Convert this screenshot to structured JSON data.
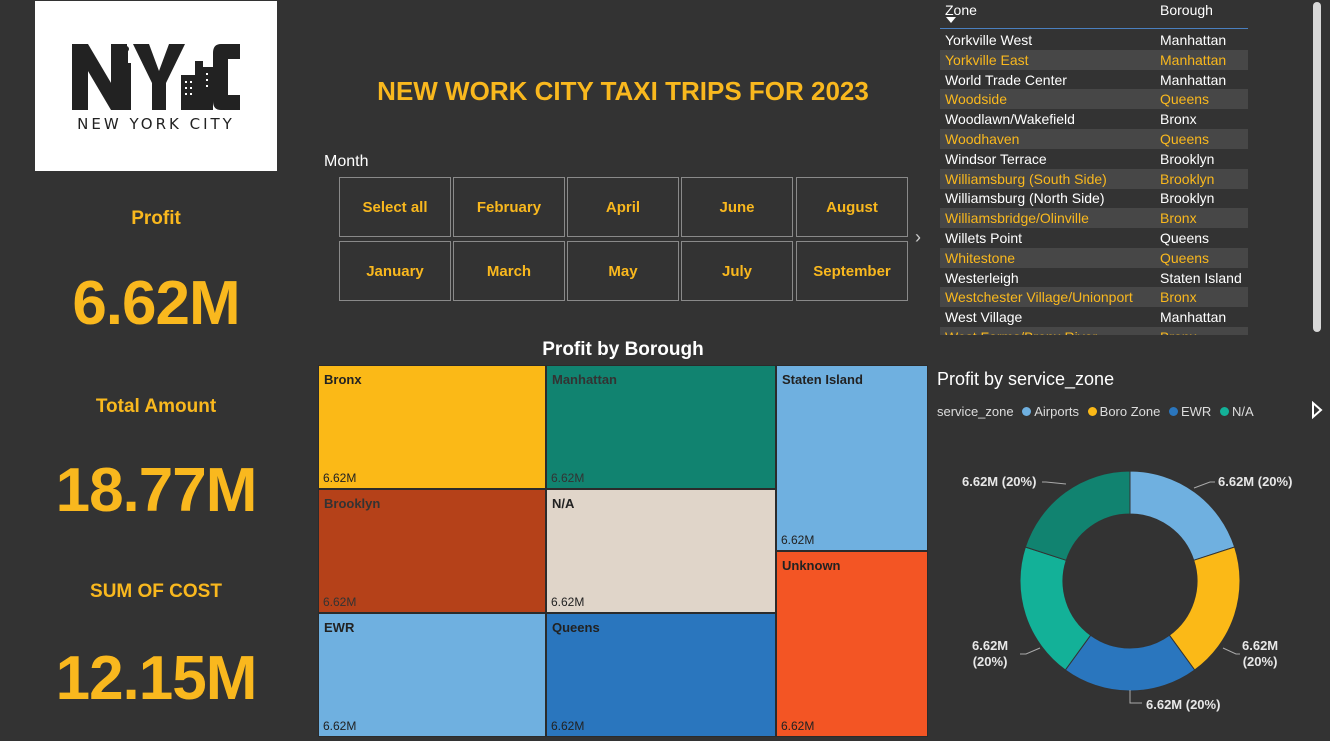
{
  "logo": {
    "big_text": "NYC",
    "subtitle": "NEW YORK CITY"
  },
  "title": "NEW WORK CITY TAXI TRIPS FOR 2023",
  "kpis": [
    {
      "label": "Profit",
      "value": "6.62M"
    },
    {
      "label": "Total Amount",
      "value": "18.77M"
    },
    {
      "label": "SUM OF COST",
      "value": "12.15M"
    }
  ],
  "month_slicer": {
    "title": "Month",
    "row1": [
      "Select all",
      "February",
      "April",
      "June",
      "August"
    ],
    "row2": [
      "January",
      "March",
      "May",
      "July",
      "September"
    ]
  },
  "zone_table": {
    "headers": [
      "Zone",
      "Borough"
    ],
    "rows": [
      [
        "Yorkville West",
        "Manhattan"
      ],
      [
        "Yorkville East",
        "Manhattan"
      ],
      [
        "World Trade Center",
        "Manhattan"
      ],
      [
        "Woodside",
        "Queens"
      ],
      [
        "Woodlawn/Wakefield",
        "Bronx"
      ],
      [
        "Woodhaven",
        "Queens"
      ],
      [
        "Windsor Terrace",
        "Brooklyn"
      ],
      [
        "Williamsburg (South Side)",
        "Brooklyn"
      ],
      [
        "Williamsburg (North Side)",
        "Brooklyn"
      ],
      [
        "Williamsbridge/Olinville",
        "Bronx"
      ],
      [
        "Willets Point",
        "Queens"
      ],
      [
        "Whitestone",
        "Queens"
      ],
      [
        "Westerleigh",
        "Staten Island"
      ],
      [
        "Westchester Village/Unionport",
        "Bronx"
      ],
      [
        "West Village",
        "Manhattan"
      ],
      [
        "West Farms/Bronx River",
        "Bronx"
      ]
    ]
  },
  "treemap": {
    "title": "Profit by Borough",
    "tiles": [
      {
        "name": "Bronx",
        "value": "6.62M",
        "color": "#fbb917",
        "text": "#222222"
      },
      {
        "name": "Manhattan",
        "value": "6.62M",
        "color": "#118370",
        "text": "#333333"
      },
      {
        "name": "Staten Island",
        "value": "6.62M",
        "color": "#6fb0e0",
        "text": "#222222"
      },
      {
        "name": "Brooklyn",
        "value": "6.62M",
        "color": "#b54119",
        "text": "#333333"
      },
      {
        "name": "N/A",
        "value": "6.62M",
        "color": "#e0d5c9",
        "text": "#222222"
      },
      {
        "name": "Unknown",
        "value": "6.62M",
        "color": "#f35524",
        "text": "#222222"
      },
      {
        "name": "EWR",
        "value": "6.62M",
        "color": "#6fb0e0",
        "text": "#222222"
      },
      {
        "name": "Queens",
        "value": "6.62M",
        "color": "#2a76be",
        "text": "#222222"
      }
    ]
  },
  "donut": {
    "title": "Profit by service_zone",
    "legend_title": "service_zone",
    "legend": [
      {
        "name": "Airports",
        "color": "#6fb0e0"
      },
      {
        "name": "Boro Zone",
        "color": "#fbb917"
      },
      {
        "name": "EWR",
        "color": "#2a76be"
      },
      {
        "name": "N/A",
        "color": "#13b198"
      }
    ],
    "label_top_left": "6.62M (20%)",
    "label_top_right": "6.62M (20%)",
    "label_right_line1": "6.62M",
    "label_right_line2": "(20%)",
    "label_left_line1": "6.62M",
    "label_left_line2": "(20%)",
    "label_bottom": "6.62M (20%)"
  },
  "chart_data": {
    "type": "pie",
    "title": "Profit by service_zone",
    "categories": [
      "Airports",
      "Boro Zone",
      "EWR",
      "N/A",
      ""
    ],
    "values": [
      20,
      20,
      20,
      20,
      20
    ],
    "colors": [
      "#6fb0e0",
      "#fbb917",
      "#2a76be",
      "#13b198",
      "#118370"
    ],
    "legend": "top-left"
  }
}
